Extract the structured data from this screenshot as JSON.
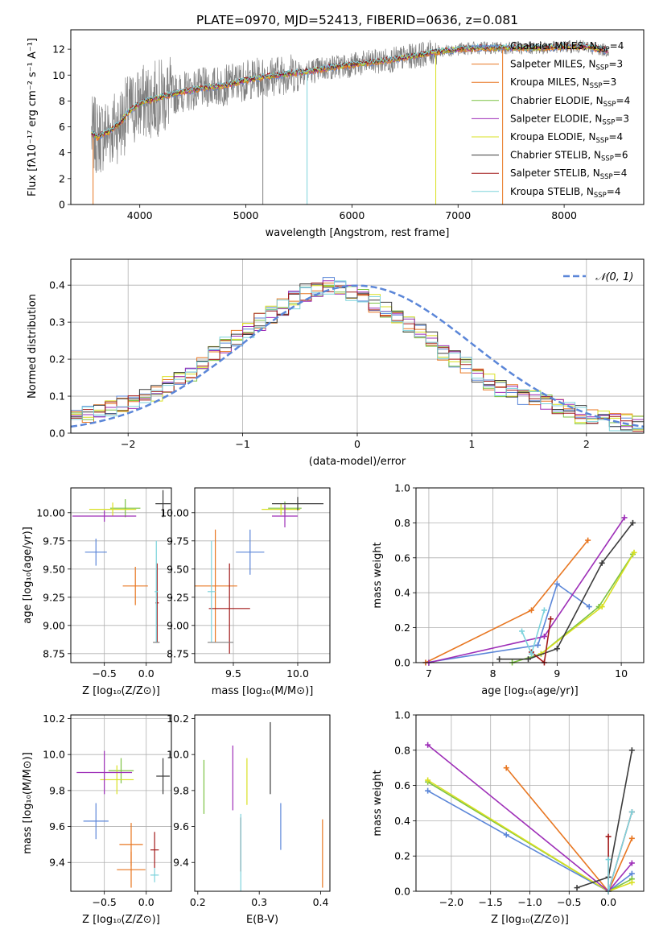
{
  "title": "PLATE=0970, MJD=52413, FIBERID=0636, z=0.081",
  "model_colors": [
    "#5B86D8",
    "#E87722",
    "#7CC242",
    "#D9E021",
    "#9E2FB8",
    "#3C3C3C",
    "#A21A1A",
    "#7DD3DC",
    "#808080"
  ],
  "chart_data": [
    {
      "type": "line",
      "panel": "spectrum",
      "xlabel": "wavelength [Angstrom, rest frame]",
      "ylabel": "Flux [fλ10⁻¹⁷ erg cm⁻² s⁻¹ A⁻¹]",
      "xlim": [
        3350,
        8750
      ],
      "ylim": [
        0,
        13.5
      ],
      "xticks": [
        4000,
        5000,
        6000,
        7000,
        8000
      ],
      "yticks": [
        0,
        2,
        4,
        6,
        8,
        10,
        12
      ],
      "legend_placement": "upper right",
      "data_series": {
        "name": "",
        "color": "#808080"
      },
      "continuum": {
        "x": [
          3540,
          3600,
          3700,
          3800,
          3900,
          4000,
          4200,
          4400,
          4600,
          4800,
          5000,
          5200,
          5400,
          5600,
          5800,
          6000,
          6200,
          6400,
          6600,
          6800,
          7000,
          7200,
          7400,
          7600,
          7800,
          8000,
          8200,
          8400
        ],
        "y": [
          5.5,
          5.2,
          5.6,
          6.2,
          7.2,
          7.8,
          8.3,
          8.7,
          9.0,
          9.2,
          9.6,
          9.9,
          10.1,
          10.3,
          10.6,
          10.8,
          11.0,
          11.2,
          11.5,
          11.8,
          12.0,
          12.1,
          12.1,
          12.1,
          12.1,
          12.2,
          12.2,
          11.9
        ]
      },
      "series": [
        {
          "name": "Chabrier MILES",
          "nssp": "4",
          "color": "#5B86D8"
        },
        {
          "name": "Salpeter MILES",
          "nssp": "3",
          "color": "#E87722"
        },
        {
          "name": "Kroupa MILES",
          "nssp": "3",
          "color": "#E87722"
        },
        {
          "name": "Chabrier ELODIE",
          "nssp": "4",
          "color": "#7CC242"
        },
        {
          "name": "Salpeter ELODIE",
          "nssp": "3",
          "color": "#9E2FB8"
        },
        {
          "name": "Kroupa ELODIE",
          "nssp": "4",
          "color": "#D9E021"
        },
        {
          "name": "Chabrier STELIB",
          "nssp": "6",
          "color": "#3C3C3C"
        },
        {
          "name": "Salpeter STELIB",
          "nssp": "4",
          "color": "#A21A1A"
        },
        {
          "name": "Kroupa STELIB",
          "nssp": "4",
          "color": "#7DD3DC"
        }
      ]
    },
    {
      "type": "histogram",
      "panel": "residuals",
      "xlabel": "(data-model)/error",
      "ylabel": "Normed distribution",
      "xlim": [
        -2.5,
        2.5
      ],
      "ylim": [
        0,
        0.47
      ],
      "xticks": [
        -2,
        -1,
        0,
        1,
        2
      ],
      "yticks": [
        0.0,
        0.1,
        0.2,
        0.3,
        0.4
      ],
      "grid": true,
      "legend_placement": "upper right",
      "reference_curve": {
        "name": "𝒩(0, 1)",
        "color": "#5B86D8",
        "style": "dashed"
      },
      "bin_width": 0.1,
      "base_values": [
        0.04,
        0.05,
        0.06,
        0.07,
        0.08,
        0.09,
        0.1,
        0.11,
        0.13,
        0.14,
        0.16,
        0.19,
        0.21,
        0.24,
        0.26,
        0.28,
        0.3,
        0.32,
        0.34,
        0.36,
        0.38,
        0.39,
        0.4,
        0.39,
        0.38,
        0.37,
        0.35,
        0.33,
        0.31,
        0.29,
        0.27,
        0.25,
        0.22,
        0.2,
        0.18,
        0.16,
        0.14,
        0.12,
        0.11,
        0.1,
        0.09,
        0.08,
        0.07,
        0.06,
        0.05,
        0.04,
        0.04,
        0.03,
        0.03,
        0.03
      ]
    },
    {
      "type": "scatter",
      "panel": "Z-age",
      "xlabel": "Z [log₁₀(Z/Z⊙)]",
      "ylabel": "age  [log₁₀(age/yr)]",
      "xlim": [
        -0.9,
        0.3
      ],
      "ylim": [
        8.67,
        10.22
      ],
      "xticks": [
        -0.5,
        0.0
      ],
      "xticklabels": [
        "−0.5",
        "0.0"
      ],
      "yticks": [
        8.75,
        9.0,
        9.25,
        9.5,
        9.75,
        10.0
      ],
      "grid": true,
      "points": [
        {
          "x": -0.6,
          "y": 9.65,
          "xerr": 0.13,
          "yerr": 0.12,
          "color": "#5B86D8"
        },
        {
          "x": -0.13,
          "y": 9.35,
          "xerr": 0.15,
          "yerr": 0.17,
          "color": "#E87722"
        },
        {
          "x": -0.25,
          "y": 10.04,
          "xerr": 0.18,
          "yerr": 0.08,
          "color": "#7CC242"
        },
        {
          "x": -0.4,
          "y": 10.03,
          "xerr": 0.28,
          "yerr": 0.06,
          "color": "#D9E021"
        },
        {
          "x": -0.5,
          "y": 9.97,
          "xerr": 0.38,
          "yerr": 0.05,
          "color": "#9E2FB8"
        },
        {
          "x": 0.2,
          "y": 10.08,
          "xerr": 0.09,
          "yerr": 0.12,
          "color": "#3C3C3C"
        },
        {
          "x": 0.13,
          "y": 9.2,
          "xerr": 0.02,
          "yerr": 0.35,
          "color": "#A21A1A"
        },
        {
          "x": 0.12,
          "y": 9.3,
          "xerr": 0.02,
          "yerr": 0.45,
          "color": "#7DD3DC"
        },
        {
          "x": 0.12,
          "y": 8.85,
          "xerr": 0.04,
          "yerr": 0.0,
          "color": "#808080"
        }
      ]
    },
    {
      "type": "scatter",
      "panel": "mass-age",
      "xlabel": "mass [log₁₀(M/M⊙)]",
      "ylabel": "",
      "xlim": [
        9.2,
        10.25
      ],
      "ylim": [
        8.67,
        10.22
      ],
      "xticks": [
        9.5,
        10.0
      ],
      "yticks": [
        8.75,
        9.0,
        9.25,
        9.5,
        9.75,
        10.0
      ],
      "grid": true,
      "points": [
        {
          "x": 9.63,
          "y": 9.65,
          "xerr": 0.11,
          "yerr": 0.2,
          "color": "#5B86D8"
        },
        {
          "x": 9.36,
          "y": 9.35,
          "xerr": 0.17,
          "yerr": 0.5,
          "color": "#E87722"
        },
        {
          "x": 9.9,
          "y": 10.04,
          "xerr": 0.13,
          "yerr": 0.06,
          "color": "#7CC242"
        },
        {
          "x": 9.87,
          "y": 10.03,
          "xerr": 0.15,
          "yerr": 0.05,
          "color": "#D9E021"
        },
        {
          "x": 9.9,
          "y": 9.97,
          "xerr": 0.1,
          "yerr": 0.1,
          "color": "#9E2FB8"
        },
        {
          "x": 10.0,
          "y": 10.08,
          "xerr": 0.2,
          "yerr": 0.06,
          "color": "#3C3C3C"
        },
        {
          "x": 9.47,
          "y": 9.15,
          "xerr": 0.16,
          "yerr": 0.4,
          "color": "#A21A1A"
        },
        {
          "x": 9.33,
          "y": 9.3,
          "xerr": 0.03,
          "yerr": 0.45,
          "color": "#7DD3DC"
        },
        {
          "x": 9.4,
          "y": 8.85,
          "xerr": 0.1,
          "yerr": 0.0,
          "color": "#808080"
        }
      ]
    },
    {
      "type": "line",
      "panel": "age-weight",
      "xlabel": "age  [log₁₀(age/yr)]",
      "ylabel": "mass weight",
      "xlim": [
        6.8,
        10.35
      ],
      "ylim": [
        0,
        1
      ],
      "xticks": [
        7,
        8,
        9,
        10
      ],
      "yticks": [
        0.0,
        0.2,
        0.4,
        0.6,
        0.8,
        1.0
      ],
      "grid": true,
      "series": [
        {
          "name": "",
          "color": "#5B86D8",
          "x": [
            6.95,
            8.7,
            9.0,
            9.5
          ],
          "y": [
            0.0,
            0.1,
            0.45,
            0.32
          ]
        },
        {
          "name": "",
          "color": "#E87722",
          "x": [
            6.95,
            8.6,
            9.48
          ],
          "y": [
            0.0,
            0.3,
            0.7
          ]
        },
        {
          "name": "",
          "color": "#7CC242",
          "x": [
            8.3,
            8.75,
            9.65,
            10.18
          ],
          "y": [
            0.0,
            0.05,
            0.32,
            0.62
          ]
        },
        {
          "name": "",
          "color": "#D9E021",
          "x": [
            8.75,
            9.7,
            10.2
          ],
          "y": [
            0.05,
            0.32,
            0.63
          ]
        },
        {
          "name": "",
          "color": "#9E2FB8",
          "x": [
            7.0,
            8.8,
            10.05
          ],
          "y": [
            0.0,
            0.15,
            0.83
          ]
        },
        {
          "name": "",
          "color": "#3C3C3C",
          "x": [
            8.1,
            8.55,
            9.0,
            9.7,
            10.18
          ],
          "y": [
            0.02,
            0.02,
            0.08,
            0.57,
            0.8
          ]
        },
        {
          "name": "",
          "color": "#A21A1A",
          "x": [
            8.6,
            8.8,
            8.9
          ],
          "y": [
            0.06,
            0.0,
            0.25
          ]
        },
        {
          "name": "",
          "color": "#7DD3DC",
          "x": [
            8.45,
            8.6,
            8.8
          ],
          "y": [
            0.18,
            0.05,
            0.3
          ]
        }
      ]
    },
    {
      "type": "scatter",
      "panel": "Z-mass",
      "xlabel": "Z [log₁₀(Z/Z⊙)]",
      "ylabel": "mass [log₁₀(M/M⊙)]",
      "xlim": [
        -0.9,
        0.3
      ],
      "ylim": [
        9.24,
        10.22
      ],
      "xticks": [
        -0.5,
        0.0
      ],
      "xticklabels": [
        "−0.5",
        "0.0"
      ],
      "yticks": [
        9.4,
        9.6,
        9.8,
        10.0,
        10.2
      ],
      "grid": true,
      "points": [
        {
          "x": -0.6,
          "y": 9.63,
          "xerr": 0.15,
          "yerr": 0.1,
          "color": "#5B86D8"
        },
        {
          "x": -0.18,
          "y": 9.36,
          "xerr": 0.17,
          "yerr": 0.1,
          "color": "#E87722"
        },
        {
          "x": -0.3,
          "y": 9.91,
          "xerr": 0.15,
          "yerr": 0.07,
          "color": "#7CC242"
        },
        {
          "x": -0.35,
          "y": 9.86,
          "xerr": 0.2,
          "yerr": 0.08,
          "color": "#D9E021"
        },
        {
          "x": -0.5,
          "y": 9.9,
          "xerr": 0.33,
          "yerr": 0.12,
          "color": "#9E2FB8"
        },
        {
          "x": 0.2,
          "y": 9.88,
          "xerr": 0.08,
          "yerr": 0.1,
          "color": "#3C3C3C"
        },
        {
          "x": 0.1,
          "y": 9.47,
          "xerr": 0.05,
          "yerr": 0.1,
          "color": "#A21A1A"
        },
        {
          "x": 0.1,
          "y": 9.33,
          "xerr": 0.05,
          "yerr": 0.04,
          "color": "#7DD3DC"
        },
        {
          "x": -0.18,
          "y": 9.5,
          "xerr": 0.14,
          "yerr": 0.12,
          "color": "#E87722"
        }
      ]
    },
    {
      "type": "scatter",
      "panel": "EBV-mass",
      "xlabel": "E(B-V)",
      "ylabel": "",
      "xlim": [
        0.195,
        0.415
      ],
      "ylim": [
        9.24,
        10.22
      ],
      "xticks": [
        0.2,
        0.3,
        0.4
      ],
      "yticks": [
        9.4,
        9.6,
        9.8,
        10.0,
        10.2
      ],
      "grid": false,
      "points": [
        {
          "x": 0.21,
          "y": 9.82,
          "yerr": 0.15,
          "color": "#7CC242"
        },
        {
          "x": 0.257,
          "y": 9.87,
          "yerr": 0.18,
          "color": "#9E2FB8"
        },
        {
          "x": 0.27,
          "y": 9.5,
          "yerr": 0.15,
          "color": "#A21A1A"
        },
        {
          "x": 0.27,
          "y": 9.45,
          "yerr": 0.22,
          "color": "#7DD3DC"
        },
        {
          "x": 0.28,
          "y": 9.85,
          "yerr": 0.13,
          "color": "#D9E021"
        },
        {
          "x": 0.318,
          "y": 9.98,
          "yerr": 0.2,
          "color": "#3C3C3C"
        },
        {
          "x": 0.335,
          "y": 9.6,
          "yerr": 0.13,
          "color": "#5B86D8"
        },
        {
          "x": 0.403,
          "y": 9.45,
          "yerr": 0.19,
          "color": "#E87722"
        }
      ]
    },
    {
      "type": "line",
      "panel": "Z-weight",
      "xlabel": "Z [log₁₀(Z/Z⊙)]",
      "ylabel": "mass weight",
      "xlim": [
        -2.45,
        0.45
      ],
      "ylim": [
        0,
        1
      ],
      "xticks": [
        -2.0,
        -1.5,
        -1.0,
        -0.5,
        0.0
      ],
      "xticklabels": [
        "−2.0",
        "−1.5",
        "−1.0",
        "−0.5",
        "0.0"
      ],
      "yticks": [
        0.0,
        0.2,
        0.4,
        0.6,
        0.8,
        1.0
      ],
      "grid": true,
      "series": [
        {
          "name": "",
          "color": "#5B86D8",
          "x": [
            -2.3,
            -1.3,
            0.0,
            0.3
          ],
          "y": [
            0.57,
            0.32,
            0.0,
            0.1
          ]
        },
        {
          "name": "",
          "color": "#E87722",
          "x": [
            -1.3,
            0.0,
            0.3
          ],
          "y": [
            0.7,
            0.0,
            0.3
          ]
        },
        {
          "name": "",
          "color": "#7CC242",
          "x": [
            -2.3,
            0.0,
            0.3
          ],
          "y": [
            0.62,
            0.0,
            0.07
          ]
        },
        {
          "name": "",
          "color": "#D9E021",
          "x": [
            -2.3,
            0.0,
            0.3
          ],
          "y": [
            0.63,
            0.0,
            0.05
          ]
        },
        {
          "name": "",
          "color": "#9E2FB8",
          "x": [
            -2.3,
            0.0,
            0.3
          ],
          "y": [
            0.83,
            0.0,
            0.16
          ]
        },
        {
          "name": "",
          "color": "#3C3C3C",
          "x": [
            -0.4,
            0.0,
            0.3
          ],
          "y": [
            0.02,
            0.08,
            0.8
          ]
        },
        {
          "name": "",
          "color": "#A21A1A",
          "x": [
            0.0,
            0.0,
            0.3
          ],
          "y": [
            0.31,
            0.0,
            0.45
          ]
        },
        {
          "name": "",
          "color": "#7DD3DC",
          "x": [
            0.0,
            0.0,
            0.3
          ],
          "y": [
            0.18,
            0.0,
            0.45
          ]
        }
      ]
    }
  ]
}
